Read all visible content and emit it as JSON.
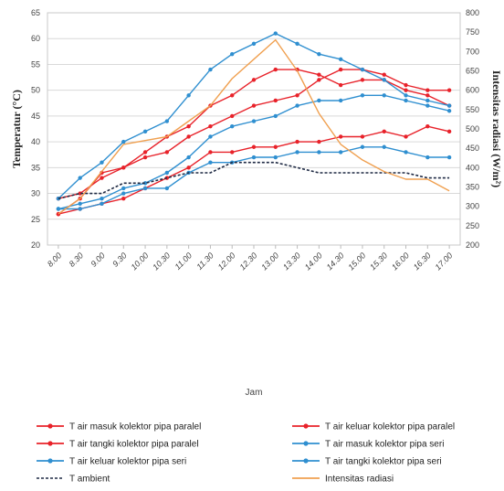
{
  "chart_data": {
    "type": "line",
    "title": "",
    "xlabel": "Jam",
    "ylabel_left": "Temperatur (°C)",
    "ylabel_right": "Intensitas radiasi (W/m²)",
    "ylim_left": [
      20,
      65
    ],
    "ylim_right": [
      200,
      800
    ],
    "yticks_left": [
      "20",
      "25",
      "30",
      "35",
      "40",
      "45",
      "50",
      "55",
      "60",
      "65"
    ],
    "yticks_right": [
      "200",
      "250",
      "300",
      "350",
      "400",
      "450",
      "500",
      "550",
      "600",
      "650",
      "700",
      "750",
      "800"
    ],
    "grid": true,
    "legend_position": "bottom",
    "x": [
      "8.00",
      "8.30",
      "9.00",
      "9.30",
      "10.00",
      "10.30",
      "11.00",
      "11.30",
      "12.00",
      "12.30",
      "13.00",
      "13.30",
      "14.00",
      "14.30",
      "15.00",
      "15.30",
      "16.00",
      "16.30",
      "17.00"
    ],
    "series": [
      {
        "name": "T air masuk kolektor pipa paralel",
        "color": "#e8222a",
        "axis": "left",
        "marker": true,
        "dashed": false,
        "values": [
          26,
          27,
          28,
          29,
          31,
          33,
          35,
          38,
          38,
          39,
          39,
          40,
          40,
          41,
          41,
          42,
          41,
          43,
          42
        ]
      },
      {
        "name": "T air keluar kolektor pipa paralel",
        "color": "#e8222a",
        "axis": "left",
        "marker": true,
        "dashed": false,
        "values": [
          26,
          29,
          34,
          35,
          38,
          41,
          43,
          47,
          49,
          52,
          54,
          54,
          53,
          51,
          52,
          52,
          50,
          49,
          47
        ]
      },
      {
        "name": "T air tangki kolektor pipa paralel",
        "color": "#e8222a",
        "axis": "left",
        "marker": true,
        "dashed": false,
        "values": [
          29,
          30,
          33,
          35,
          37,
          38,
          41,
          43,
          45,
          47,
          48,
          49,
          52,
          54,
          54,
          53,
          51,
          50,
          50
        ]
      },
      {
        "name": "T air masuk kolektor pipa seri",
        "color": "#2f8fd0",
        "axis": "left",
        "marker": true,
        "dashed": false,
        "values": [
          27,
          27,
          28,
          30,
          31,
          31,
          34,
          36,
          36,
          37,
          37,
          38,
          38,
          38,
          39,
          39,
          38,
          37,
          37
        ]
      },
      {
        "name": "T air keluar kolektor pipa seri",
        "color": "#2f8fd0",
        "axis": "left",
        "marker": true,
        "dashed": false,
        "values": [
          29,
          33,
          36,
          40,
          42,
          44,
          49,
          54,
          57,
          59,
          61,
          59,
          57,
          56,
          54,
          52,
          49,
          48,
          47
        ]
      },
      {
        "name": "T air tangki kolektor pipa seri",
        "color": "#2f8fd0",
        "axis": "left",
        "marker": true,
        "dashed": false,
        "values": [
          27,
          28,
          29,
          31,
          32,
          34,
          37,
          41,
          43,
          44,
          45,
          47,
          48,
          48,
          49,
          49,
          48,
          47,
          46
        ]
      },
      {
        "name": "T ambient",
        "color": "#1f2a44",
        "axis": "left",
        "marker": false,
        "dashed": true,
        "values": [
          29,
          30,
          30,
          32,
          32,
          33,
          34,
          34,
          36,
          36,
          36,
          35,
          34,
          34,
          34,
          34,
          34,
          33,
          33
        ]
      },
      {
        "name": "Intensitas radiasi",
        "color": "#f0a050",
        "axis": "right",
        "marker": false,
        "dashed": false,
        "values": [
          280,
          320,
          390,
          460,
          470,
          480,
          520,
          560,
          630,
          680,
          730,
          650,
          540,
          460,
          420,
          390,
          370,
          370,
          340
        ]
      }
    ]
  }
}
